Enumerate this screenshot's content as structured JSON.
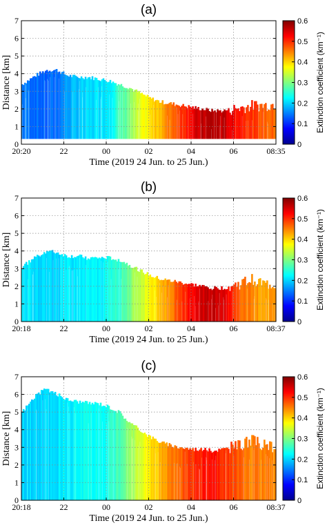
{
  "panels": [
    {
      "label": "(a)",
      "xlabel": "Time (2019 24 Jun. to 25 Jun.)",
      "ylabel": "Distance [km]",
      "ylim": [
        0,
        7
      ],
      "yticks": [
        "0",
        "1",
        "2",
        "3",
        "4",
        "5",
        "6",
        "7"
      ],
      "xticks": [
        "20:20",
        "22",
        "00",
        "02",
        "04",
        "06",
        "08:35"
      ],
      "colorbar": {
        "label": "Extinction coefficient (km⁻¹)",
        "ticks": [
          "0",
          "0.1",
          "0.2",
          "0.3",
          "0.4",
          "0.5",
          "0.6"
        ],
        "range": [
          0,
          0.6
        ]
      },
      "chart_data": {
        "type": "heatmap",
        "x_unit": "hours since 20:00 on 24 Jun",
        "x": [
          0.33,
          1.0,
          1.5,
          2.0,
          2.5,
          3.0,
          3.5,
          4.0,
          4.5,
          5.0,
          5.5,
          6.0,
          6.5,
          7.0,
          7.5,
          8.0,
          8.5,
          9.0,
          9.5,
          10.0,
          10.5,
          11.0,
          11.5,
          12.0,
          12.58
        ],
        "top_km": [
          3.4,
          3.9,
          4.2,
          4.2,
          3.9,
          3.8,
          3.8,
          3.7,
          3.6,
          3.4,
          3.2,
          2.9,
          2.6,
          2.4,
          2.3,
          2.2,
          2.1,
          2.0,
          1.9,
          1.9,
          2.0,
          2.1,
          2.2,
          2.2,
          2.3
        ],
        "extinction": [
          0.15,
          0.14,
          0.13,
          0.14,
          0.17,
          0.19,
          0.2,
          0.21,
          0.22,
          0.26,
          0.3,
          0.35,
          0.39,
          0.42,
          0.46,
          0.5,
          0.53,
          0.56,
          0.57,
          0.56,
          0.53,
          0.51,
          0.49,
          0.47,
          0.46
        ],
        "bottom_km": 0.3
      }
    },
    {
      "label": "(b)",
      "xlabel": "Time (2019 24 Jun. to 25 Jun.)",
      "ylabel": "Distance [km]",
      "ylim": [
        0,
        7
      ],
      "yticks": [
        "0",
        "1",
        "2",
        "3",
        "4",
        "5",
        "6",
        "7"
      ],
      "xticks": [
        "20:18",
        "22",
        "00",
        "02",
        "04",
        "06",
        "08:37"
      ],
      "colorbar": {
        "label": "Extinction coefficient (km⁻¹)",
        "ticks": [
          "0",
          "0.1",
          "0.2",
          "0.3",
          "0.4",
          "0.5",
          "0.6"
        ],
        "range": [
          0,
          0.6
        ]
      },
      "chart_data": {
        "type": "heatmap",
        "x_unit": "hours since 20:00 on 24 Jun",
        "x": [
          0.3,
          1.0,
          1.5,
          2.0,
          2.5,
          3.0,
          3.5,
          4.0,
          4.5,
          5.0,
          5.5,
          6.0,
          6.5,
          7.0,
          7.5,
          8.0,
          8.5,
          9.0,
          9.5,
          10.0,
          10.5,
          11.0,
          11.5,
          12.0,
          12.62
        ],
        "top_km": [
          3.1,
          3.7,
          4.0,
          3.9,
          3.7,
          3.7,
          3.6,
          3.6,
          3.6,
          3.5,
          3.2,
          2.9,
          2.6,
          2.4,
          2.3,
          2.2,
          2.1,
          2.0,
          1.9,
          1.9,
          2.0,
          2.2,
          2.4,
          2.1,
          2.1
        ],
        "extinction": [
          0.22,
          0.21,
          0.2,
          0.2,
          0.21,
          0.21,
          0.22,
          0.22,
          0.23,
          0.26,
          0.3,
          0.34,
          0.38,
          0.41,
          0.45,
          0.49,
          0.52,
          0.55,
          0.56,
          0.55,
          0.5,
          0.46,
          0.44,
          0.43,
          0.43
        ],
        "bottom_km": 0.0
      }
    },
    {
      "label": "(c)",
      "xlabel": "Time (2019 24 Jun. to 25 Jun.)",
      "ylabel": "Distance [km]",
      "ylim": [
        0,
        7
      ],
      "yticks": [
        "0",
        "1",
        "2",
        "3",
        "4",
        "5",
        "6",
        "7"
      ],
      "xticks": [
        "20:18",
        "22",
        "00",
        "02",
        "04",
        "06",
        "08:37"
      ],
      "colorbar": {
        "label": "Extinction coefficient (km⁻¹)",
        "ticks": [
          "0",
          "0.1",
          "0.2",
          "0.3",
          "0.4",
          "0.5",
          "0.6"
        ],
        "range": [
          0,
          0.6
        ]
      },
      "chart_data": {
        "type": "heatmap",
        "x_unit": "hours since 20:00 on 24 Jun",
        "x": [
          0.3,
          1.0,
          1.5,
          2.0,
          2.5,
          3.0,
          3.5,
          4.0,
          4.5,
          5.0,
          5.5,
          6.0,
          6.5,
          7.0,
          7.5,
          8.0,
          8.5,
          9.0,
          9.5,
          10.0,
          10.5,
          11.0,
          11.5,
          12.0,
          12.62
        ],
        "top_km": [
          5.0,
          6.0,
          6.3,
          6.0,
          5.7,
          5.6,
          5.5,
          5.5,
          5.3,
          5.0,
          4.4,
          4.0,
          3.6,
          3.3,
          3.1,
          3.0,
          2.9,
          2.9,
          2.8,
          2.9,
          3.0,
          3.2,
          3.4,
          3.1,
          3.0
        ],
        "extinction": [
          0.2,
          0.2,
          0.2,
          0.21,
          0.22,
          0.22,
          0.23,
          0.23,
          0.24,
          0.27,
          0.31,
          0.35,
          0.39,
          0.42,
          0.45,
          0.47,
          0.49,
          0.51,
          0.52,
          0.5,
          0.48,
          0.46,
          0.45,
          0.45,
          0.45
        ],
        "bottom_km": 0.0
      }
    }
  ]
}
